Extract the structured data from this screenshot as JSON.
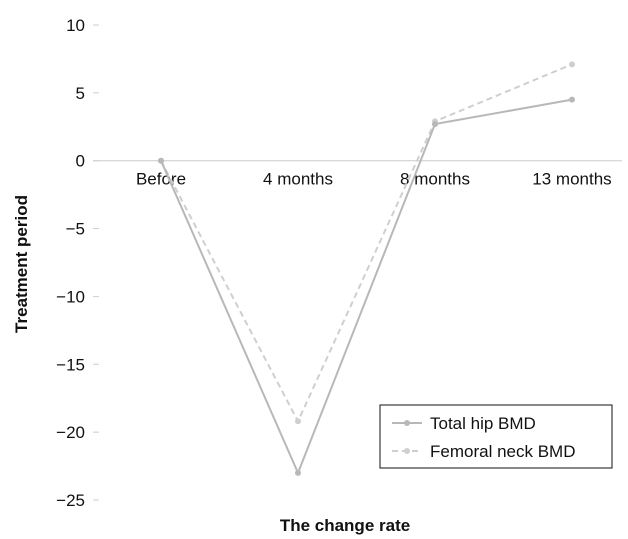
{
  "chart_data": {
    "type": "line",
    "title": "",
    "xlabel": "The change rate",
    "ylabel": "Treatment period",
    "categories": [
      "Before",
      "4 months",
      "8 months",
      "13 months"
    ],
    "ylim": [
      -25,
      10
    ],
    "yticks": [
      10,
      5,
      0,
      -5,
      -10,
      -15,
      -20,
      -25
    ],
    "ytick_labels": [
      "10",
      "5",
      "0",
      "−5",
      "−10",
      "−15",
      "−20",
      "−25"
    ],
    "grid": false,
    "legend_position": "bottom-right",
    "series": [
      {
        "name": "Total hip BMD",
        "values": [
          0,
          -23,
          2.7,
          4.5
        ],
        "color": "#b8b8b8",
        "style": "solid"
      },
      {
        "name": "Femoral neck BMD",
        "values": [
          0,
          -19.2,
          2.9,
          7.1
        ],
        "color": "#cfcfcf",
        "style": "dashed"
      }
    ]
  }
}
